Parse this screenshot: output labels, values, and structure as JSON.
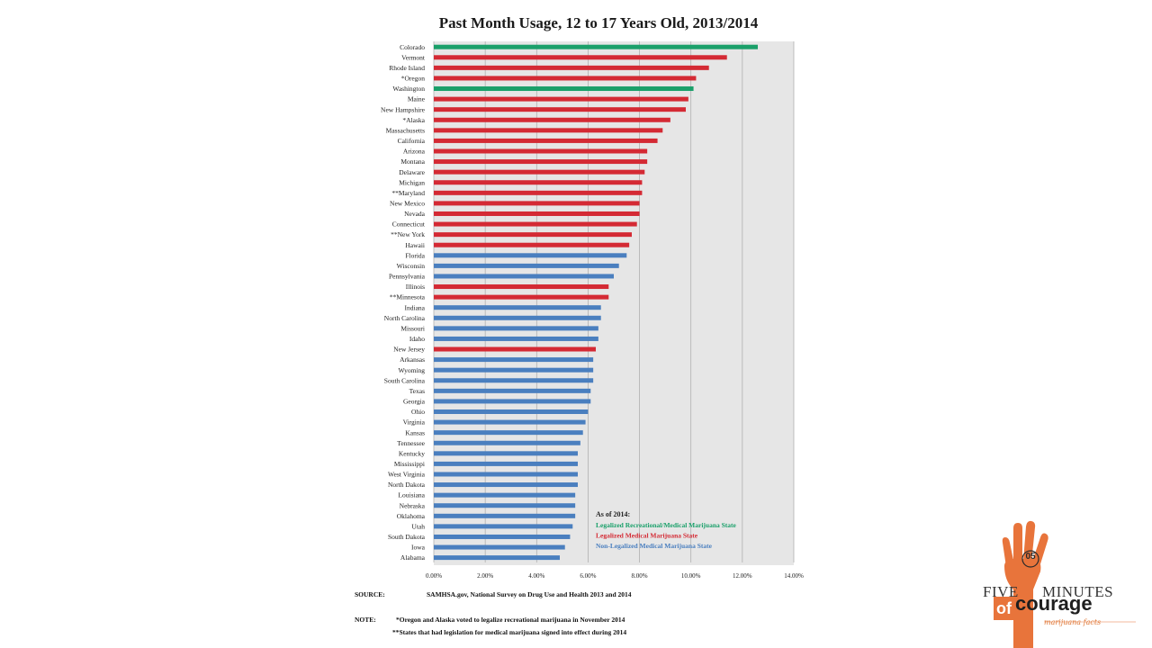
{
  "chart_data": {
    "type": "bar",
    "orientation": "horizontal",
    "title": "Past Month Usage, 12 to 17 Years Old, 2013/2014",
    "xlim": [
      0,
      14
    ],
    "x_ticks": [
      "0.00%",
      "2.00%",
      "4.00%",
      "6.00%",
      "8.00%",
      "10.00%",
      "12.00%",
      "14.00%"
    ],
    "grid": "vertical",
    "legend_position": "bottom-right",
    "legend": {
      "title": "As of 2014:",
      "items": [
        {
          "label": "Legalized Recreational/Medical Marijuana State",
          "color": "#1aa06a",
          "category": "recreational"
        },
        {
          "label": "Legalized Medical Marijuana State",
          "color": "#d42a34",
          "category": "medical"
        },
        {
          "label": "Non-Legalized Medical Marijuana State",
          "color": "#4a7fbf",
          "category": "none"
        }
      ]
    },
    "bars": [
      {
        "state": "Colorado",
        "value": 12.6,
        "category": "recreational"
      },
      {
        "state": "Vermont",
        "value": 11.4,
        "category": "medical"
      },
      {
        "state": "Rhode Island",
        "value": 10.7,
        "category": "medical"
      },
      {
        "state": "*Oregon",
        "value": 10.2,
        "category": "medical"
      },
      {
        "state": "Washington",
        "value": 10.1,
        "category": "recreational"
      },
      {
        "state": "Maine",
        "value": 9.9,
        "category": "medical"
      },
      {
        "state": "New Hampshire",
        "value": 9.8,
        "category": "medical"
      },
      {
        "state": "*Alaska",
        "value": 9.2,
        "category": "medical"
      },
      {
        "state": "Massachusetts",
        "value": 8.9,
        "category": "medical"
      },
      {
        "state": "California",
        "value": 8.7,
        "category": "medical"
      },
      {
        "state": "Arizona",
        "value": 8.3,
        "category": "medical"
      },
      {
        "state": "Montana",
        "value": 8.3,
        "category": "medical"
      },
      {
        "state": "Delaware",
        "value": 8.2,
        "category": "medical"
      },
      {
        "state": "Michigan",
        "value": 8.1,
        "category": "medical"
      },
      {
        "state": "**Maryland",
        "value": 8.1,
        "category": "medical"
      },
      {
        "state": "New Mexico",
        "value": 8.0,
        "category": "medical"
      },
      {
        "state": "Nevada",
        "value": 8.0,
        "category": "medical"
      },
      {
        "state": "Connecticut",
        "value": 7.9,
        "category": "medical"
      },
      {
        "state": "**New York",
        "value": 7.7,
        "category": "medical"
      },
      {
        "state": "Hawaii",
        "value": 7.6,
        "category": "medical"
      },
      {
        "state": "Florida",
        "value": 7.5,
        "category": "none"
      },
      {
        "state": "Wisconsin",
        "value": 7.2,
        "category": "none"
      },
      {
        "state": "Pennsylvania",
        "value": 7.0,
        "category": "none"
      },
      {
        "state": "Illinois",
        "value": 6.8,
        "category": "medical"
      },
      {
        "state": "**Minnesota",
        "value": 6.8,
        "category": "medical"
      },
      {
        "state": "Indiana",
        "value": 6.5,
        "category": "none"
      },
      {
        "state": "North Carolina",
        "value": 6.5,
        "category": "none"
      },
      {
        "state": "Missouri",
        "value": 6.4,
        "category": "none"
      },
      {
        "state": "Idaho",
        "value": 6.4,
        "category": "none"
      },
      {
        "state": "New Jersey",
        "value": 6.3,
        "category": "medical"
      },
      {
        "state": "Arkansas",
        "value": 6.2,
        "category": "none"
      },
      {
        "state": "Wyoming",
        "value": 6.2,
        "category": "none"
      },
      {
        "state": "South Carolina",
        "value": 6.2,
        "category": "none"
      },
      {
        "state": "Texas",
        "value": 6.1,
        "category": "none"
      },
      {
        "state": "Georgia",
        "value": 6.1,
        "category": "none"
      },
      {
        "state": "Ohio",
        "value": 6.0,
        "category": "none"
      },
      {
        "state": "Virginia",
        "value": 5.9,
        "category": "none"
      },
      {
        "state": "Kansas",
        "value": 5.8,
        "category": "none"
      },
      {
        "state": "Tennessee",
        "value": 5.7,
        "category": "none"
      },
      {
        "state": "Kentucky",
        "value": 5.6,
        "category": "none"
      },
      {
        "state": "Mississippi",
        "value": 5.6,
        "category": "none"
      },
      {
        "state": "West Virginia",
        "value": 5.6,
        "category": "none"
      },
      {
        "state": "North Dakota",
        "value": 5.6,
        "category": "none"
      },
      {
        "state": "Louisiana",
        "value": 5.5,
        "category": "none"
      },
      {
        "state": "Nebraska",
        "value": 5.5,
        "category": "none"
      },
      {
        "state": "Oklahoma",
        "value": 5.5,
        "category": "none"
      },
      {
        "state": "Utah",
        "value": 5.4,
        "category": "none"
      },
      {
        "state": "South Dakota",
        "value": 5.3,
        "category": "none"
      },
      {
        "state": "Iowa",
        "value": 5.1,
        "category": "none"
      },
      {
        "state": "Alabama",
        "value": 4.9,
        "category": "none"
      }
    ]
  },
  "footer": {
    "source_label": "SOURCE:",
    "source_text": "SAMHSA.gov, National Survey on Drug Use and Health 2013 and 2014",
    "note_label": "NOTE:",
    "note_line1": "*Oregon and Alaska voted to legalize recreational marijuana in November 2014",
    "note_line2": "**States that had legislation for medical marijuana signed into effect during 2014"
  },
  "logo": {
    "badge": "05",
    "word_five": "FIVE",
    "word_minutes": "MINUTES",
    "word_of": "of",
    "word_courage": "courage",
    "tagline": "marijuana facts",
    "hand_color": "#e8743b"
  }
}
